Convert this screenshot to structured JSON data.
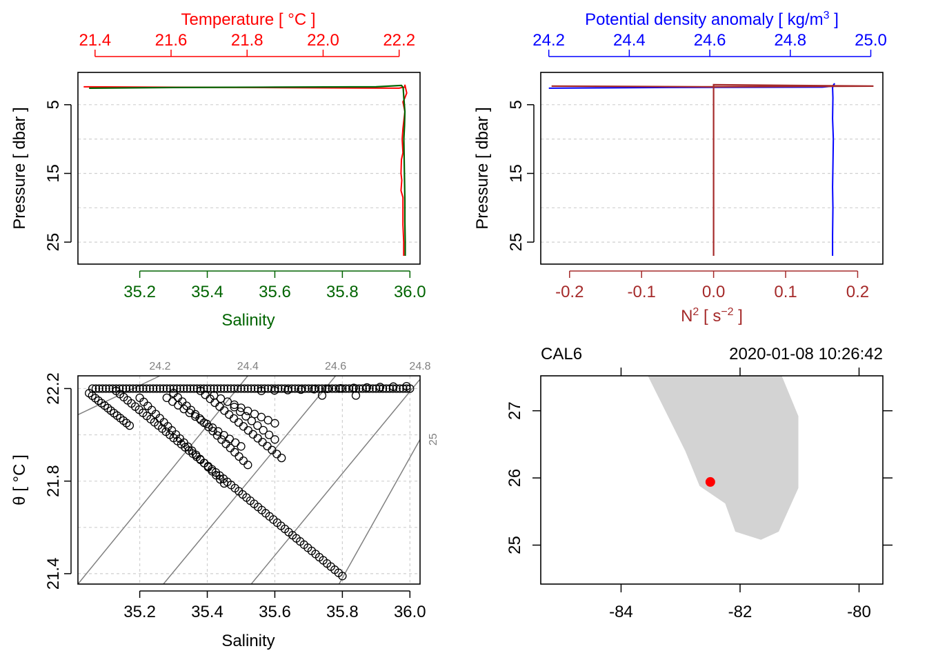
{
  "colors": {
    "temperature": "#ff0000",
    "salinity": "#006400",
    "density": "#0000ff",
    "n2": "#a52a2a",
    "isopycnal": "#808080",
    "land": "#d3d3d3",
    "station": "#ff0000",
    "grid": "#cfcfcf"
  },
  "chart_data": [
    {
      "panel": "temperature-salinity-profile",
      "type": "line",
      "top_axis": {
        "label": "Temperature [ °C ]",
        "range": [
          21.355,
          22.255
        ],
        "ticks": [
          21.4,
          21.6,
          21.8,
          22.0,
          22.2
        ],
        "tick_labels": [
          "21.4",
          "21.6",
          "21.8",
          "22.0",
          "22.2"
        ]
      },
      "bottom_axis": {
        "label": "Salinity",
        "range": [
          35.017,
          36.03
        ],
        "ticks": [
          35.2,
          35.4,
          35.6,
          35.8,
          36.0
        ],
        "tick_labels": [
          "35.2",
          "35.4",
          "35.6",
          "35.8",
          "36.0"
        ]
      },
      "y_axis": {
        "label": "Pressure [ dbar ]",
        "range": [
          28.2,
          0.3
        ],
        "ticks": [
          5,
          15,
          25
        ],
        "tick_labels": [
          "5",
          "15",
          "25"
        ],
        "grid": [
          5,
          10,
          15,
          20,
          25
        ]
      },
      "series": [
        {
          "name": "Temperature",
          "x": [
            21.37,
            21.8,
            22.2,
            22.215,
            22.215,
            22.22,
            22.215,
            22.21,
            22.215,
            22.212,
            22.21,
            22.208,
            22.21,
            22.206,
            22.205,
            22.207,
            22.205,
            22.21,
            22.21,
            22.21,
            22.212,
            22.212
          ],
          "pressure": [
            2.4,
            2.5,
            2.6,
            2.4,
            2.1,
            3.3,
            4.0,
            4.6,
            6.0,
            7.5,
            8.5,
            10.0,
            12.0,
            13.0,
            15.0,
            16.0,
            17.5,
            18.5,
            20.0,
            22.5,
            25.0,
            27.0
          ]
        },
        {
          "name": "Salinity",
          "x": [
            35.05,
            35.3,
            35.6,
            35.9,
            35.975,
            35.98,
            35.982,
            35.985,
            35.984,
            35.982,
            35.983,
            35.984,
            35.985,
            35.985,
            35.986,
            35.986
          ],
          "pressure": [
            2.6,
            2.5,
            2.45,
            2.4,
            2.2,
            2.5,
            4.0,
            6.0,
            8.0,
            10.0,
            13.0,
            16.0,
            19.0,
            22.0,
            25.0,
            27.0
          ]
        }
      ]
    },
    {
      "panel": "density-n2-profile",
      "type": "line",
      "top_axis": {
        "label_prefix": "Potential density anomaly [ kg/m",
        "label_sup": "3",
        "label_suffix": " ]",
        "range": [
          24.18,
          25.03
        ],
        "ticks": [
          24.2,
          24.4,
          24.6,
          24.8,
          25.0
        ],
        "tick_labels": [
          "24.2",
          "24.4",
          "24.6",
          "24.8",
          "25.0"
        ]
      },
      "bottom_axis": {
        "label_prefix": "N",
        "label_sup1": "2",
        "label_mid": " [ s",
        "label_sup2": "−2",
        "label_suffix": " ]",
        "range": [
          -0.24,
          0.235
        ],
        "ticks": [
          -0.2,
          -0.1,
          0.0,
          0.1,
          0.2
        ],
        "tick_labels": [
          "-0.2",
          "-0.1",
          "0.0",
          "0.1",
          "0.2"
        ]
      },
      "y_axis": {
        "label": "Pressure [ dbar ]",
        "range": [
          28.2,
          0.3
        ],
        "ticks": [
          5,
          15,
          25
        ],
        "tick_labels": [
          "5",
          "15",
          "25"
        ],
        "grid": [
          5,
          10,
          15,
          20,
          25
        ]
      },
      "series": [
        {
          "name": "Potential density anomaly",
          "x": [
            24.2,
            24.5,
            24.88,
            24.905,
            24.91,
            24.905,
            24.906,
            24.905,
            24.907,
            24.906,
            24.905,
            24.906,
            24.905,
            24.905
          ],
          "pressure": [
            2.6,
            2.5,
            2.45,
            2.3,
            1.9,
            2.5,
            4.0,
            7.0,
            10.0,
            14.0,
            17.0,
            20.0,
            24.0,
            27.0
          ]
        },
        {
          "name": "N2",
          "x": [
            -0.225,
            0.0,
            0.222,
            0.0,
            0.0,
            0.0
          ],
          "pressure": [
            2.3,
            2.4,
            2.3,
            2.1,
            5.0,
            27.0
          ]
        }
      ]
    },
    {
      "panel": "ts-diagram",
      "type": "scatter",
      "x_axis": {
        "label": "Salinity",
        "range": [
          35.017,
          36.03
        ],
        "ticks": [
          35.2,
          35.4,
          35.6,
          35.8,
          36.0
        ],
        "tick_labels": [
          "35.2",
          "35.4",
          "35.6",
          "35.8",
          "36.0"
        ]
      },
      "y_axis": {
        "label": "θ [ °C ]",
        "range": [
          21.355,
          22.255
        ],
        "ticks": [
          21.4,
          21.8,
          22.2
        ],
        "tick_labels": [
          "21.4",
          "21.8",
          "22.2"
        ],
        "grid": [
          21.4,
          21.6,
          21.8,
          22.0,
          22.2
        ]
      },
      "isopycnals": [
        {
          "label": "24.2",
          "points": [
            [
              35.017,
              22.087
            ],
            [
              35.26,
              22.255
            ]
          ]
        },
        {
          "label": "24.4",
          "points": [
            [
              35.017,
              21.355
            ],
            [
              35.52,
              22.255
            ]
          ]
        },
        {
          "label": "24.6",
          "points": [
            [
              35.27,
              21.355
            ],
            [
              35.78,
              22.255
            ]
          ]
        },
        {
          "label": "24.8",
          "points": [
            [
              35.53,
              21.355
            ],
            [
              36.03,
              22.24
            ]
          ]
        },
        {
          "label": "25",
          "points": [
            [
              35.79,
              21.355
            ],
            [
              36.03,
              21.98
            ]
          ]
        }
      ],
      "segments": [
        {
          "s": [
            35.06,
            36.0
          ],
          "t": [
            22.2,
            22.2
          ],
          "n": 95
        },
        {
          "s": [
            35.05,
            35.17
          ],
          "t": [
            22.18,
            22.04
          ],
          "n": 14
        },
        {
          "s": [
            35.13,
            35.8
          ],
          "t": [
            22.19,
            21.39
          ],
          "n": 60
        },
        {
          "s": [
            35.2,
            35.45
          ],
          "t": [
            22.16,
            21.79
          ],
          "n": 22
        },
        {
          "s": [
            35.3,
            35.52
          ],
          "t": [
            22.18,
            21.87
          ],
          "n": 18
        },
        {
          "s": [
            35.38,
            35.62
          ],
          "t": [
            22.19,
            21.9
          ],
          "n": 18
        },
        {
          "s": [
            35.28,
            35.5
          ],
          "t": [
            22.16,
            21.95
          ],
          "n": 14
        },
        {
          "s": [
            35.42,
            35.6
          ],
          "t": [
            22.17,
            22.05
          ],
          "n": 10
        },
        {
          "s": [
            35.48,
            35.6
          ],
          "t": [
            22.12,
            21.98
          ],
          "n": 8
        },
        {
          "s": [
            35.56,
            35.99
          ],
          "t": [
            22.19,
            22.21
          ],
          "n": 12
        },
        {
          "s": [
            35.74,
            35.84
          ],
          "t": [
            22.17,
            22.17
          ],
          "n": 2
        }
      ]
    },
    {
      "panel": "station-map",
      "type": "scatter",
      "station_label": "CAL6",
      "datetime": "2020-01-08 10:26:42",
      "lon_range": [
        -85.35,
        -79.6
      ],
      "lat_range": [
        24.42,
        27.52
      ],
      "lon_ticks": [
        -84,
        -82,
        -80
      ],
      "lon_tick_labels": [
        "-84",
        "-82",
        "-80"
      ],
      "lat_ticks": [
        25,
        26,
        27
      ],
      "lat_tick_labels": [
        "25",
        "26",
        "27"
      ],
      "station": {
        "lon": -82.5,
        "lat": 25.94
      },
      "land": [
        [
          -82.22,
          27.52
        ],
        [
          -81.3,
          27.52
        ],
        [
          -81.02,
          26.92
        ],
        [
          -81.02,
          25.85
        ],
        [
          -81.35,
          25.2
        ],
        [
          -81.65,
          25.08
        ],
        [
          -82.08,
          25.2
        ],
        [
          -82.25,
          25.62
        ],
        [
          -82.68,
          25.88
        ],
        [
          -82.92,
          26.4
        ],
        [
          -83.55,
          27.52
        ]
      ]
    }
  ]
}
